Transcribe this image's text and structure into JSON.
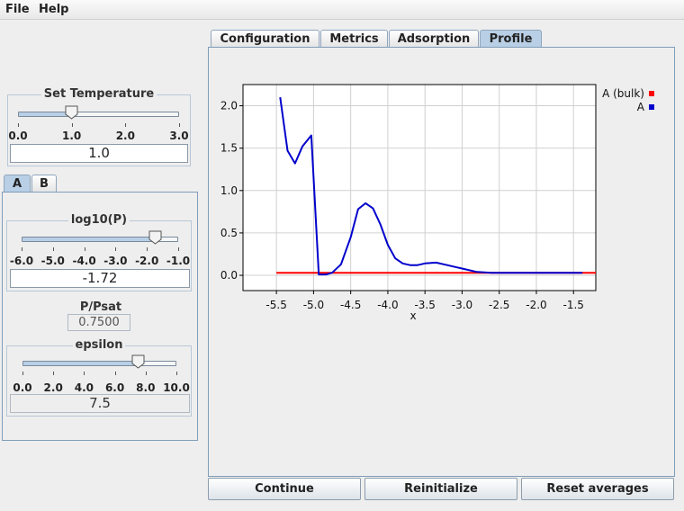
{
  "menu": {
    "file": "File",
    "help": "Help"
  },
  "temperature": {
    "title": "Set Temperature",
    "min": 0.0,
    "max": 3.0,
    "value": 1.0,
    "tick_labels": [
      "0.0",
      "1.0",
      "2.0",
      "3.0"
    ],
    "field_value": "1.0"
  },
  "species_tabs": [
    "A",
    "B"
  ],
  "log10p": {
    "title": "log10(P)",
    "min": -6.0,
    "max": -1.0,
    "value": -1.72,
    "tick_labels": [
      "-6.0",
      "-5.0",
      "-4.0",
      "-3.0",
      "-2.0",
      "-1.0"
    ],
    "field_value": "-1.72"
  },
  "ppsat": {
    "label": "P/Psat",
    "value": "0.7500"
  },
  "epsilon": {
    "title": "epsilon",
    "min": 0.0,
    "max": 10.0,
    "value": 7.5,
    "tick_labels": [
      "0.0",
      "2.0",
      "4.0",
      "6.0",
      "8.0",
      "10.0"
    ],
    "field_value": "7.5"
  },
  "main_tabs": [
    "Configuration",
    "Metrics",
    "Adsorption",
    "Profile"
  ],
  "selected_main_tab": "Profile",
  "chart_data": {
    "type": "line",
    "xlabel": "x",
    "ylabel": "",
    "xlim": [
      -5.95,
      -1.2
    ],
    "ylim": [
      -0.18,
      2.25
    ],
    "x_ticks": [
      -5.5,
      -5.0,
      -4.5,
      -4.0,
      -3.5,
      -3.0,
      -2.5,
      -2.0,
      -1.5
    ],
    "x_tick_labels": [
      "-5.5",
      "-5.0",
      "-4.5",
      "-4.0",
      "-3.5",
      "-3.0",
      "-2.5",
      "-2.0",
      "-1.5"
    ],
    "y_ticks": [
      0.0,
      0.5,
      1.0,
      1.5,
      2.0
    ],
    "y_tick_labels": [
      "0.0",
      "0.5",
      "1.0",
      "1.5",
      "2.0"
    ],
    "grid": true,
    "legend_position": "top-right",
    "series": [
      {
        "name": "A (bulk)",
        "color": "#ff0000",
        "points": [
          [
            -5.5,
            0.03
          ],
          [
            -1.2,
            0.03
          ]
        ]
      },
      {
        "name": "A",
        "color": "#0000cc",
        "points": [
          [
            -5.45,
            2.1
          ],
          [
            -5.35,
            1.47
          ],
          [
            -5.25,
            1.32
          ],
          [
            -5.15,
            1.52
          ],
          [
            -5.03,
            1.65
          ],
          [
            -4.93,
            0.01
          ],
          [
            -4.83,
            0.01
          ],
          [
            -4.75,
            0.03
          ],
          [
            -4.63,
            0.13
          ],
          [
            -4.5,
            0.45
          ],
          [
            -4.4,
            0.78
          ],
          [
            -4.3,
            0.85
          ],
          [
            -4.2,
            0.79
          ],
          [
            -4.1,
            0.6
          ],
          [
            -4.0,
            0.36
          ],
          [
            -3.9,
            0.2
          ],
          [
            -3.8,
            0.14
          ],
          [
            -3.7,
            0.12
          ],
          [
            -3.6,
            0.12
          ],
          [
            -3.5,
            0.14
          ],
          [
            -3.35,
            0.15
          ],
          [
            -3.2,
            0.12
          ],
          [
            -3.0,
            0.08
          ],
          [
            -2.8,
            0.04
          ],
          [
            -2.6,
            0.03
          ],
          [
            -2.0,
            0.03
          ],
          [
            -1.5,
            0.03
          ],
          [
            -1.38,
            0.03
          ]
        ]
      }
    ]
  },
  "buttons": {
    "continue": "Continue",
    "reinitialize": "Reinitialize",
    "reset": "Reset averages"
  }
}
